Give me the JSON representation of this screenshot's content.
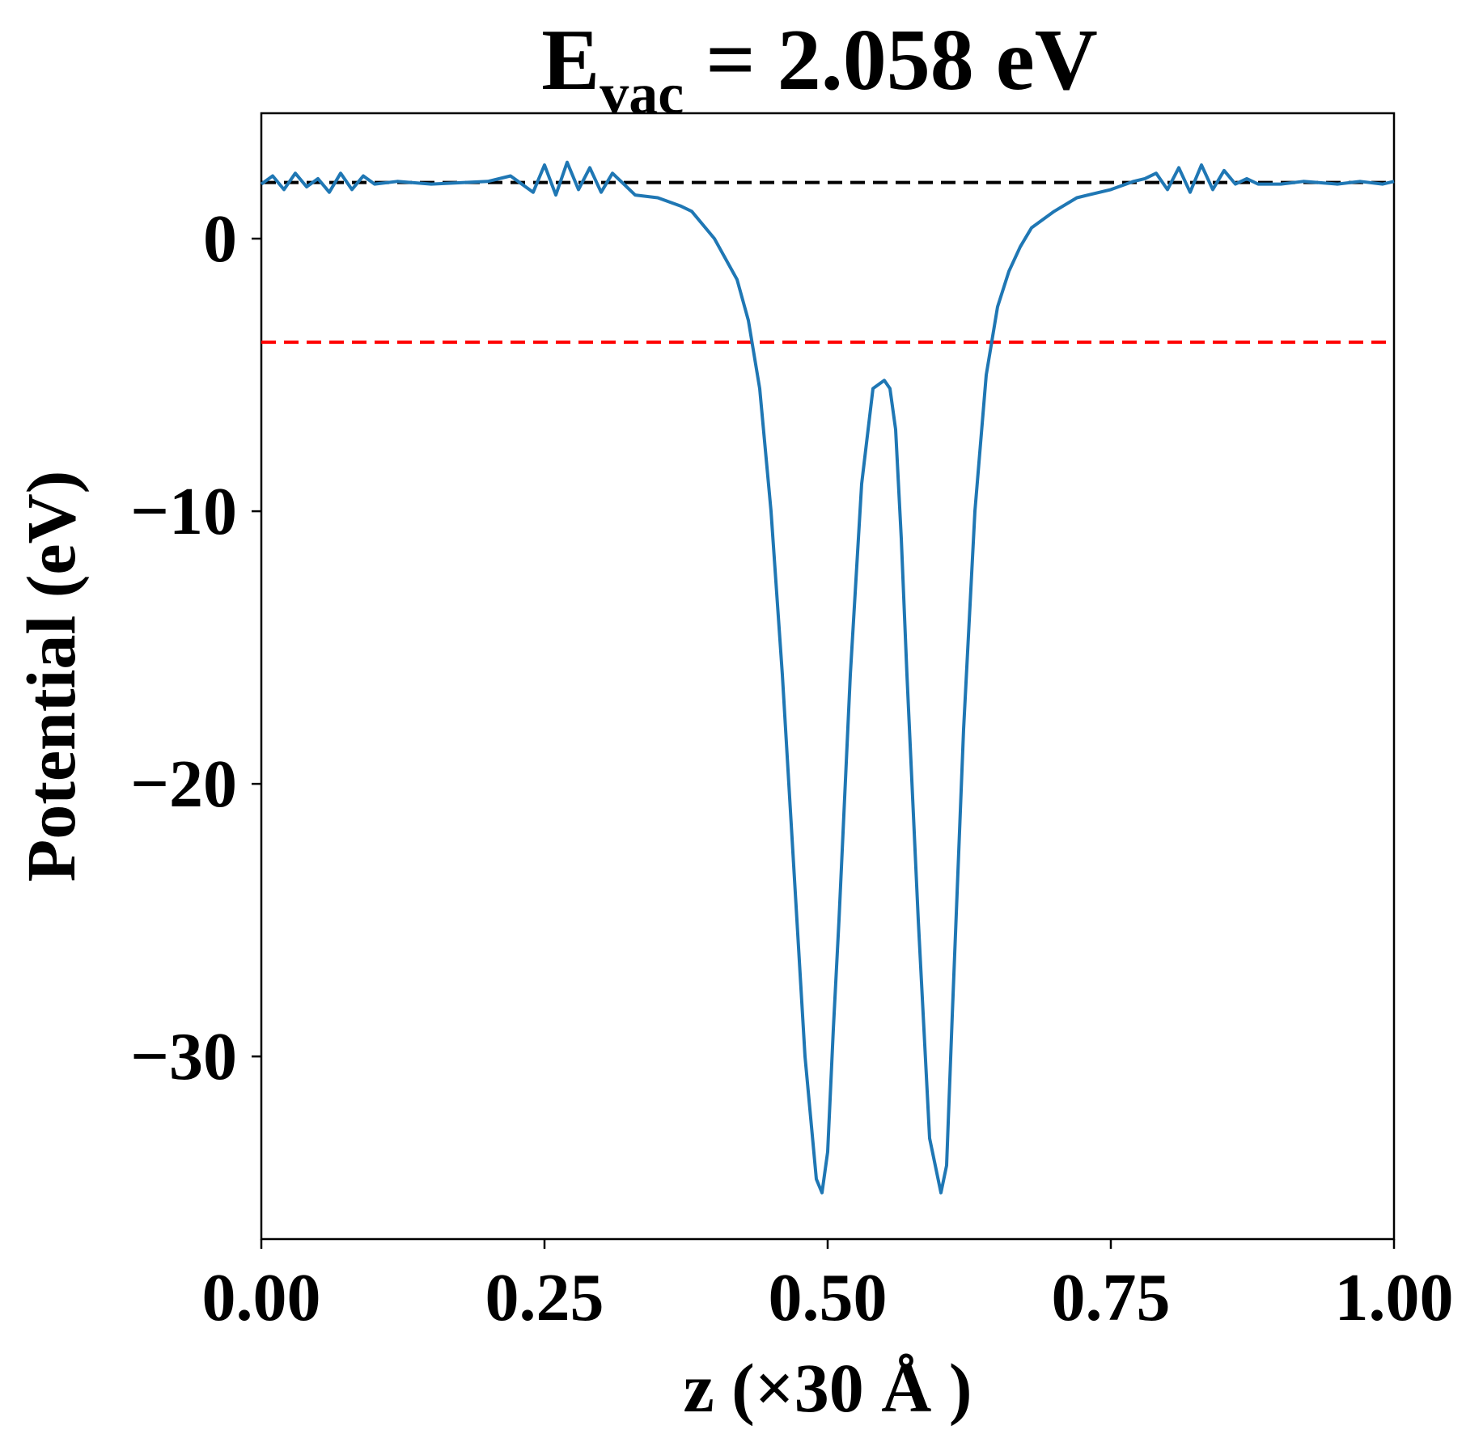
{
  "chart_data": {
    "type": "line",
    "title": {
      "main": "E",
      "subscript": "vac",
      "rest": " = 2.058 eV"
    },
    "xlabel": "z (×30 Å )",
    "ylabel": "Potential (eV)",
    "xlim": [
      0.0,
      1.0
    ],
    "ylim": [
      -36.7,
      4.6
    ],
    "x_ticks": [
      0.0,
      0.25,
      0.5,
      0.75,
      1.0
    ],
    "x_tick_labels": [
      "0.00",
      "0.25",
      "0.50",
      "0.75",
      "1.00"
    ],
    "y_ticks": [
      0,
      -10,
      -20,
      -30
    ],
    "y_tick_labels": [
      "0",
      "−10",
      "−20",
      "−30"
    ],
    "grid": false,
    "series": [
      {
        "color": "#1f77b4",
        "x": [
          0.0,
          0.01,
          0.02,
          0.03,
          0.04,
          0.05,
          0.06,
          0.07,
          0.08,
          0.09,
          0.1,
          0.12,
          0.15,
          0.2,
          0.22,
          0.24,
          0.25,
          0.26,
          0.27,
          0.28,
          0.29,
          0.3,
          0.31,
          0.32,
          0.33,
          0.35,
          0.37,
          0.38,
          0.4,
          0.42,
          0.43,
          0.44,
          0.45,
          0.46,
          0.47,
          0.48,
          0.49,
          0.495,
          0.5,
          0.505,
          0.51,
          0.52,
          0.53,
          0.54,
          0.55,
          0.555,
          0.56,
          0.565,
          0.57,
          0.58,
          0.59,
          0.6,
          0.605,
          0.61,
          0.62,
          0.63,
          0.64,
          0.65,
          0.66,
          0.67,
          0.68,
          0.7,
          0.72,
          0.73,
          0.75,
          0.77,
          0.78,
          0.79,
          0.8,
          0.81,
          0.82,
          0.83,
          0.84,
          0.85,
          0.86,
          0.87,
          0.88,
          0.9,
          0.92,
          0.95,
          0.97,
          0.99,
          1.0
        ],
        "y": [
          2.0,
          2.3,
          1.8,
          2.4,
          1.9,
          2.2,
          1.7,
          2.4,
          1.8,
          2.3,
          2.0,
          2.1,
          2.0,
          2.1,
          2.3,
          1.7,
          2.7,
          1.6,
          2.8,
          1.8,
          2.6,
          1.7,
          2.4,
          2.0,
          1.6,
          1.5,
          1.2,
          1.0,
          0.0,
          -1.5,
          -3.0,
          -5.5,
          -10.0,
          -16.0,
          -23.0,
          -30.0,
          -34.5,
          -35.0,
          -33.5,
          -29.0,
          -25.0,
          -16.0,
          -9.0,
          -5.5,
          -5.2,
          -5.5,
          -7.0,
          -11.0,
          -16.0,
          -25.0,
          -33.0,
          -35.0,
          -34.0,
          -28.5,
          -18.0,
          -10.0,
          -5.0,
          -2.5,
          -1.2,
          -0.3,
          0.4,
          1.0,
          1.5,
          1.6,
          1.8,
          2.1,
          2.2,
          2.4,
          1.8,
          2.6,
          1.7,
          2.7,
          1.8,
          2.5,
          2.0,
          2.2,
          2.0,
          2.0,
          2.1,
          2.0,
          2.1,
          2.0,
          2.1
        ]
      }
    ],
    "reference_lines": [
      {
        "y": 2.058,
        "color": "#000000",
        "style": "dashed"
      },
      {
        "y": -3.8,
        "color": "#ff0000",
        "style": "dashed"
      }
    ]
  }
}
